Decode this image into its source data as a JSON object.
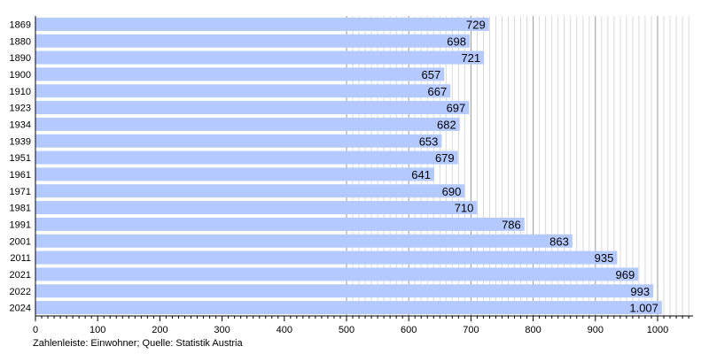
{
  "chart_data": {
    "type": "bar",
    "orientation": "horizontal",
    "categories": [
      "1869",
      "1880",
      "1890",
      "1900",
      "1910",
      "1923",
      "1934",
      "1939",
      "1951",
      "1961",
      "1971",
      "1981",
      "1991",
      "2001",
      "2011",
      "2021",
      "2022",
      "2024"
    ],
    "values": [
      729,
      698,
      721,
      657,
      667,
      697,
      682,
      653,
      679,
      641,
      690,
      710,
      786,
      863,
      935,
      969,
      993,
      1007
    ],
    "value_labels": [
      "729",
      "698",
      "721",
      "657",
      "667",
      "697",
      "682",
      "653",
      "679",
      "641",
      "690",
      "710",
      "786",
      "863",
      "935",
      "969",
      "993",
      "1.007"
    ],
    "xlim": [
      0,
      1050
    ],
    "xticks": [
      0,
      100,
      200,
      300,
      400,
      500,
      600,
      700,
      800,
      900,
      1000
    ],
    "bar_color": "#b3c9ff",
    "grid": true
  },
  "caption": "Zahlenleiste: Einwohner; Quelle: Statistik Austria"
}
